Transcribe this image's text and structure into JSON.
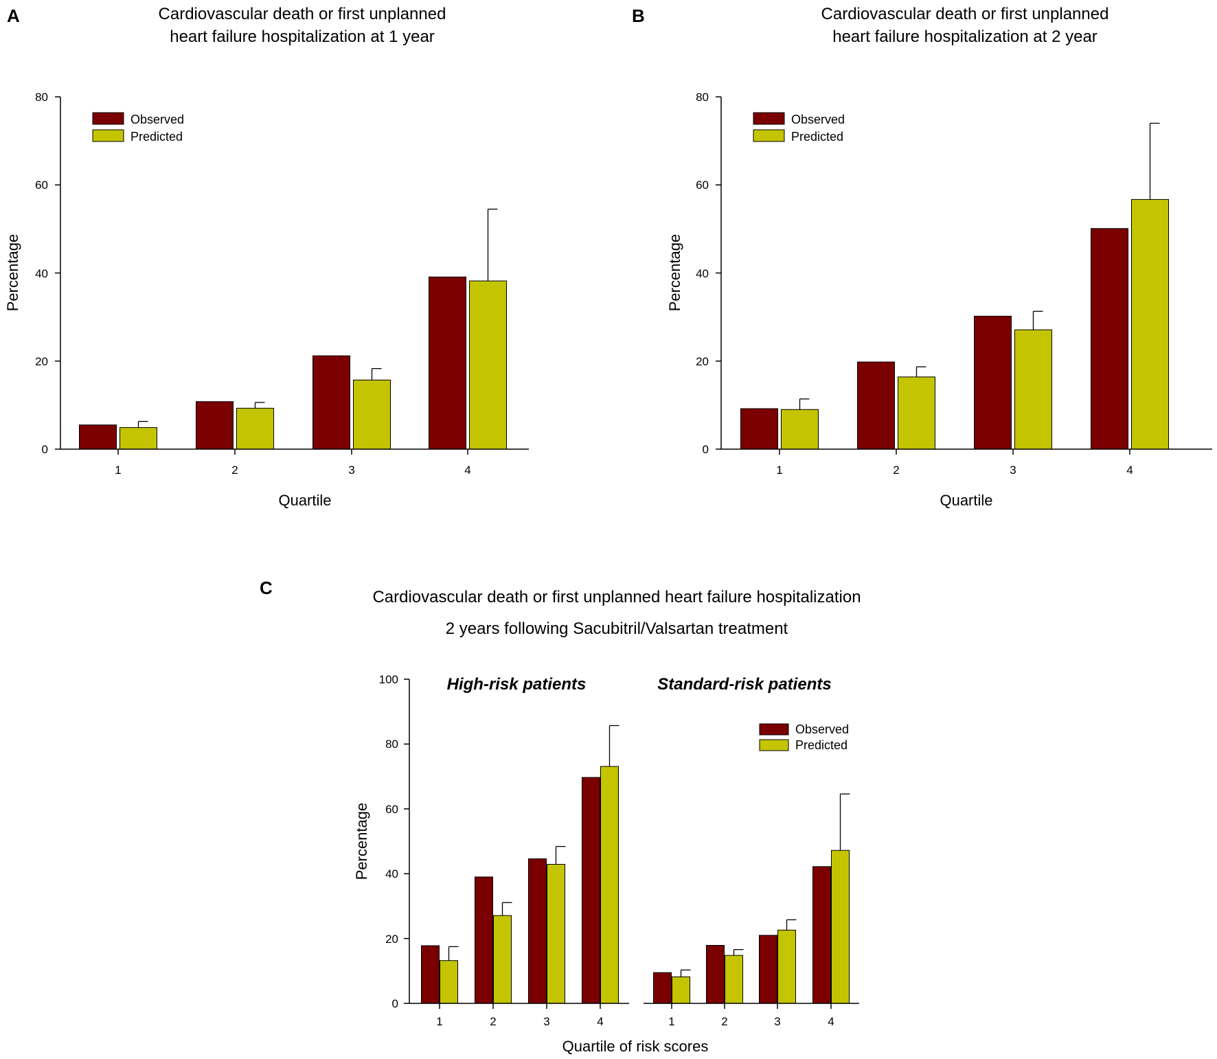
{
  "colors": {
    "observed": "#7a0000",
    "predicted": "#c4c400",
    "axis": "#000000"
  },
  "chart_data": [
    {
      "id": "A",
      "type": "bar",
      "panel_label": "A",
      "title": [
        "Cardiovascular death or first unplanned",
        "heart failure hospitalization at 1 year"
      ],
      "xlabel": "Quartile",
      "ylabel": "Percentage",
      "ylim": [
        0,
        80
      ],
      "yticks": [
        "0",
        "20",
        "40",
        "60",
        "80"
      ],
      "categories": [
        "1",
        "2",
        "3",
        "4"
      ],
      "legend": [
        "Observed",
        "Predicted"
      ],
      "series": [
        {
          "name": "Observed",
          "values": [
            5.5,
            10.8,
            21.2,
            39.1
          ]
        },
        {
          "name": "Predicted",
          "values": [
            4.9,
            9.3,
            15.7,
            38.2
          ],
          "error_upper": [
            6.3,
            10.6,
            18.3,
            54.5
          ]
        }
      ]
    },
    {
      "id": "B",
      "type": "bar",
      "panel_label": "B",
      "title": [
        "Cardiovascular death or first unplanned",
        "heart failure hospitalization at 2 year"
      ],
      "xlabel": "Quartile",
      "ylabel": "Percentage",
      "ylim": [
        0,
        80
      ],
      "yticks": [
        "0",
        "20",
        "40",
        "60",
        "80"
      ],
      "categories": [
        "1",
        "2",
        "3",
        "4"
      ],
      "legend": [
        "Observed",
        "Predicted"
      ],
      "series": [
        {
          "name": "Observed",
          "values": [
            9.2,
            19.8,
            30.2,
            50.1
          ]
        },
        {
          "name": "Predicted",
          "values": [
            9.0,
            16.4,
            27.1,
            56.7
          ],
          "error_upper": [
            11.4,
            18.7,
            31.3,
            74.0
          ]
        }
      ]
    },
    {
      "id": "C",
      "type": "bar",
      "panel_label": "C",
      "title": [
        "Cardiovascular death or first unplanned heart failure hospitalization",
        "2 years following Sacubitril/Valsartan treatment"
      ],
      "xlabel": "Quartile of risk scores",
      "ylabel": "Percentage",
      "ylim": [
        0,
        100
      ],
      "yticks": [
        "0",
        "20",
        "40",
        "60",
        "80",
        "100"
      ],
      "legend": [
        "Observed",
        "Predicted"
      ],
      "groups": [
        {
          "name": "High-risk patients",
          "categories": [
            "1",
            "2",
            "3",
            "4"
          ],
          "series": [
            {
              "name": "Observed",
              "values": [
                17.8,
                39.0,
                44.6,
                69.7
              ]
            },
            {
              "name": "Predicted",
              "values": [
                13.2,
                27.1,
                42.9,
                73.1
              ],
              "error_upper": [
                17.5,
                31.1,
                48.4,
                85.7
              ]
            }
          ]
        },
        {
          "name": "Standard-risk patients",
          "categories": [
            "1",
            "2",
            "3",
            "4"
          ],
          "series": [
            {
              "name": "Observed",
              "values": [
                9.5,
                17.9,
                21.0,
                42.2
              ]
            },
            {
              "name": "Predicted",
              "values": [
                8.2,
                14.8,
                22.6,
                47.2
              ],
              "error_upper": [
                10.3,
                16.6,
                25.8,
                64.6
              ]
            }
          ]
        }
      ]
    }
  ]
}
